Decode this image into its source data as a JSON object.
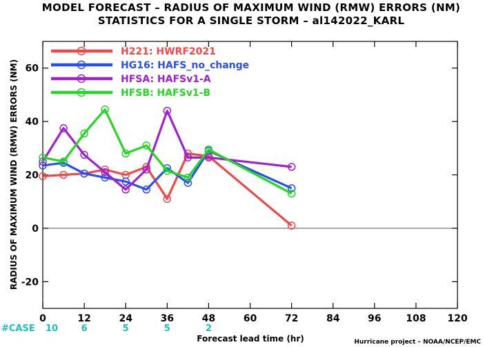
{
  "title_line1": "MODEL FORECAST – RADIUS OF MAXIMUM WIND (RMW) ERRORS (NM)",
  "title_line2": "STATISTICS FOR A SINGLE STORM – al142022_KARL",
  "credit": "Hurricane project – NOAA/NCEP/EMC",
  "case_label": "#CASE",
  "chart_data": {
    "type": "line",
    "xlabel": "Forecast lead time (hr)",
    "ylabel": "RADIUS OF MAXIMUM WIND (RMW) ERRORS (NM)",
    "xlim": [
      0,
      120
    ],
    "ylim": [
      -30,
      70
    ],
    "xticks": [
      0,
      12,
      24,
      36,
      48,
      60,
      72,
      84,
      96,
      108,
      120
    ],
    "yticks": [
      -20,
      0,
      20,
      40,
      60
    ],
    "grid": false,
    "legend": "top-left",
    "series": [
      {
        "name": "H221: HWRF2021",
        "color": "#f04848",
        "x": [
          0,
          6,
          12,
          18,
          24,
          30,
          36,
          42,
          48,
          72
        ],
        "y": [
          19.5,
          20,
          20.5,
          22,
          20,
          23,
          11,
          28,
          27,
          1
        ]
      },
      {
        "name": "HG16: HAFS_no_change",
        "color": "#2a4ef0",
        "x": [
          0,
          6,
          12,
          18,
          24,
          30,
          36,
          42,
          48,
          72
        ],
        "y": [
          23.5,
          24.5,
          20.5,
          19,
          17.5,
          14.5,
          22.5,
          17,
          29,
          15
        ]
      },
      {
        "name": "HFSA: HAFSv1-A",
        "color": "#a020d0",
        "x": [
          0,
          6,
          12,
          18,
          24,
          30,
          36,
          42,
          48,
          72
        ],
        "y": [
          25,
          37.5,
          27.5,
          21,
          14.5,
          22,
          44,
          26.5,
          26.5,
          23
        ]
      },
      {
        "name": "HFSB: HAFSv1-B",
        "color": "#22d822",
        "x": [
          0,
          6,
          12,
          18,
          24,
          30,
          36,
          42,
          48,
          72
        ],
        "y": [
          26.5,
          25,
          35.5,
          44.5,
          28,
          31,
          21.5,
          19,
          29.5,
          13
        ]
      }
    ],
    "cases": [
      {
        "x": 0,
        "count": "10"
      },
      {
        "x": 12,
        "count": "6"
      },
      {
        "x": 24,
        "count": "5"
      },
      {
        "x": 36,
        "count": "5"
      },
      {
        "x": 48,
        "count": "2"
      }
    ]
  }
}
